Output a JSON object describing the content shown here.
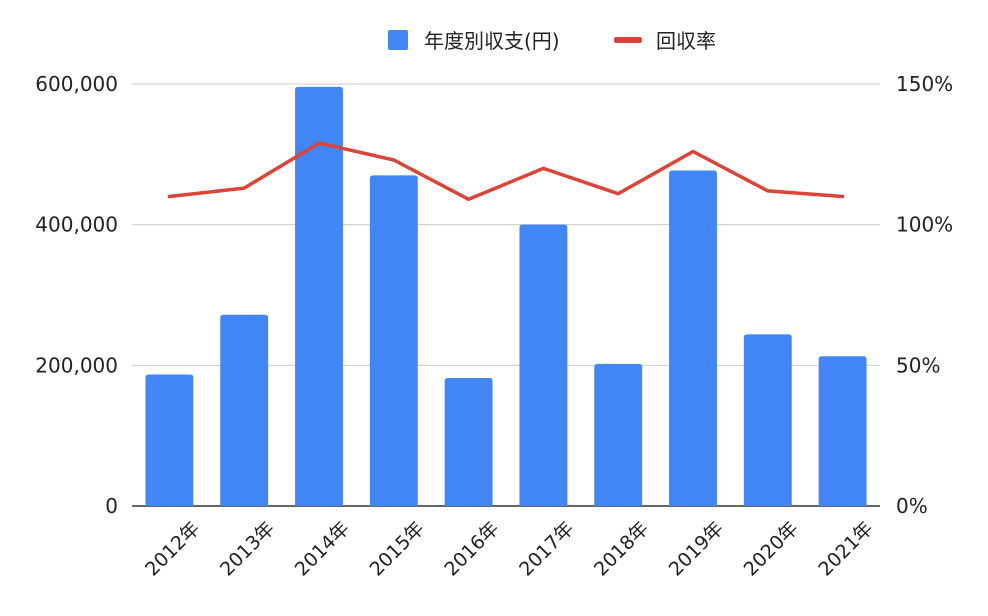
{
  "chart_data": {
    "type": "bar",
    "categories": [
      "2012年",
      "2013年",
      "2014年",
      "2015年",
      "2016年",
      "2017年",
      "2018年",
      "2019年",
      "2020年",
      "2021年"
    ],
    "series": [
      {
        "name": "年度別収支(円)",
        "type": "bar",
        "axis": "left",
        "color": "#4285f4",
        "values": [
          187000,
          272000,
          596000,
          470000,
          182000,
          400000,
          202000,
          477000,
          244000,
          213000
        ]
      },
      {
        "name": "回収率",
        "type": "line",
        "axis": "right",
        "color": "#db4437",
        "values": [
          110,
          113,
          129,
          123,
          109,
          120,
          111,
          126,
          112,
          110
        ]
      }
    ],
    "left_axis": {
      "ylim": [
        0,
        600000
      ],
      "ticks": [
        0,
        200000,
        400000,
        600000
      ],
      "tick_labels": [
        "0",
        "200,000",
        "400,000",
        "600,000"
      ]
    },
    "right_axis": {
      "ylim": [
        0,
        150
      ],
      "ticks": [
        0,
        50,
        100,
        150
      ],
      "tick_labels": [
        "0%",
        "50%",
        "100%",
        "150%"
      ]
    },
    "grid": true,
    "legend_position": "top",
    "title": "",
    "xlabel": "",
    "ylabel": ""
  }
}
